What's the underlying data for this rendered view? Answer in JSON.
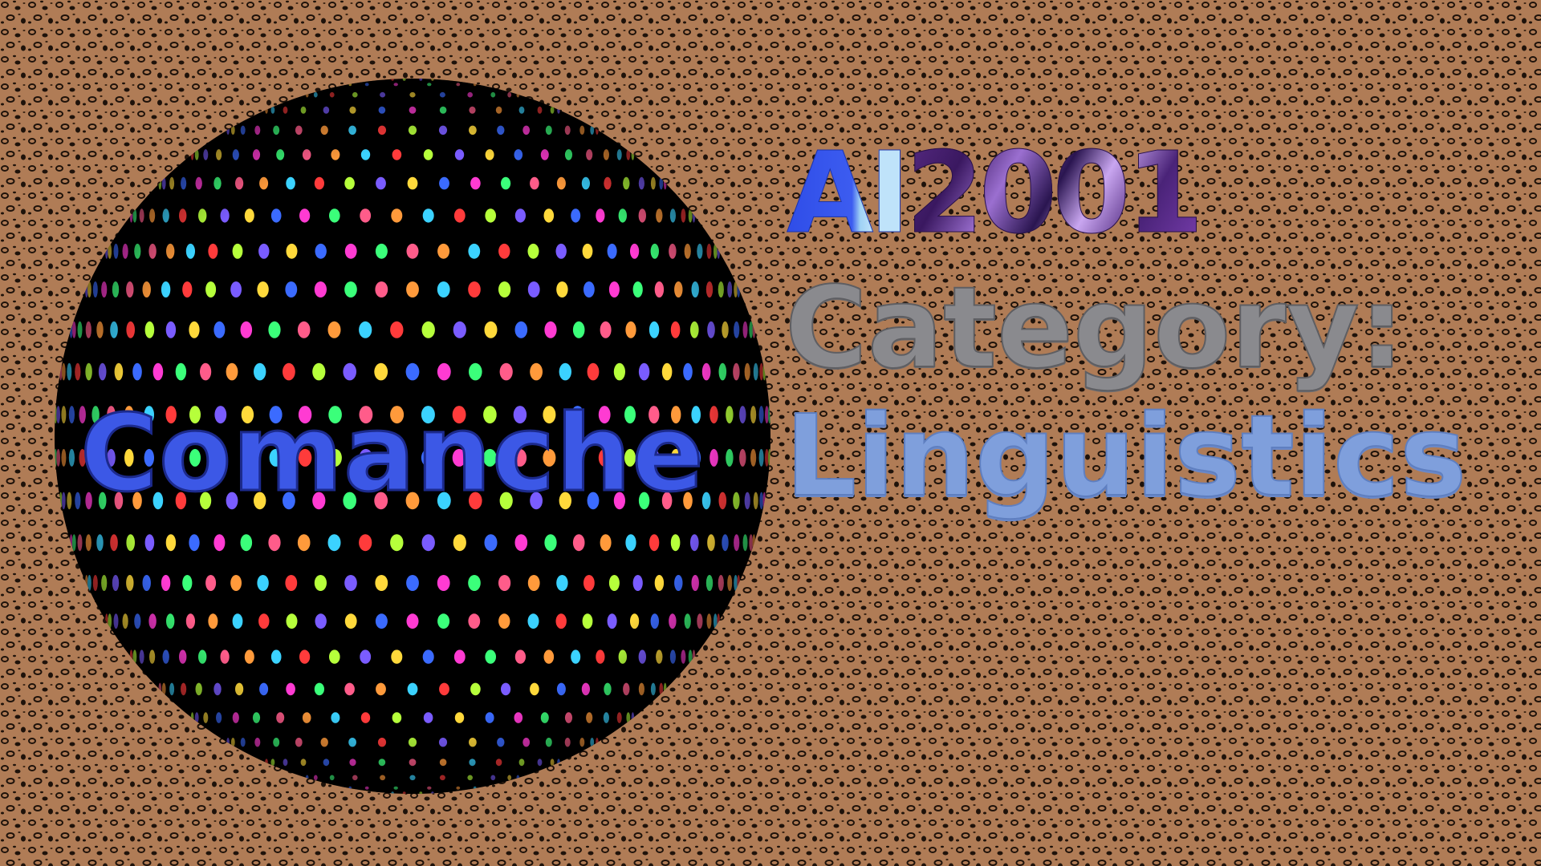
{
  "sphere": {
    "label": "Comanche",
    "label_color": "#3c58e6",
    "base_color": "#000000",
    "dot_palette": [
      "#ff3b3b",
      "#ffd93b",
      "#3bff7a",
      "#3bd2ff",
      "#7a5cff",
      "#ff3bd2",
      "#ff9a3b",
      "#b6ff3b",
      "#3b6bff",
      "#ff5c8a"
    ]
  },
  "title": {
    "prefix": "AI",
    "year": "2001",
    "prefix_color": "#2f4de8",
    "year_color": "#5a2c86"
  },
  "category": {
    "label": "Category:",
    "value": "Linguistics",
    "label_color": "#8a8a8e",
    "value_color": "#7f9fdc"
  },
  "background": {
    "pattern": "leopard-print",
    "base_color": "#b07c56",
    "spot_color": "#1e120a"
  }
}
